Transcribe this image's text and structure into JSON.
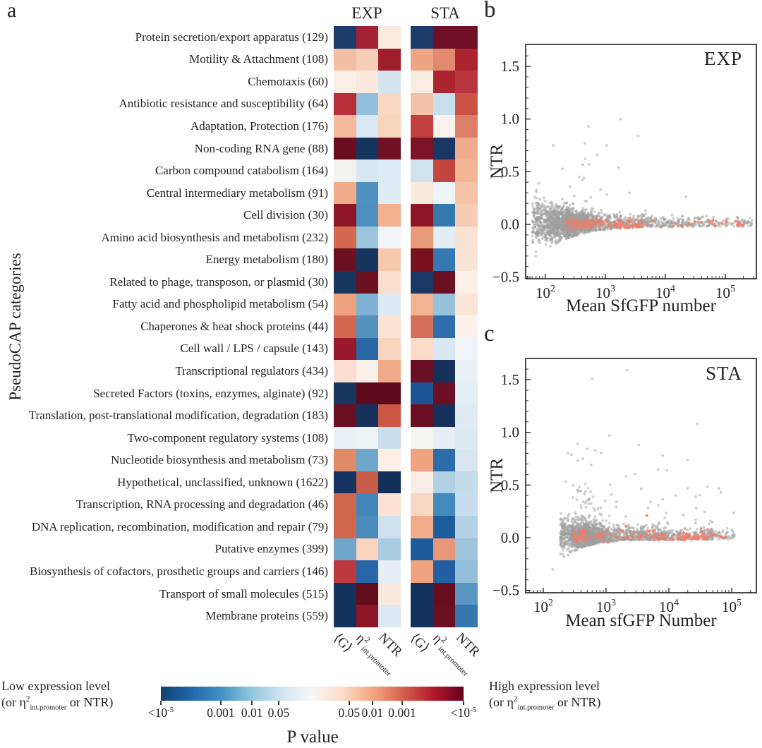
{
  "panel_letters": {
    "a": "a",
    "b": "b",
    "c": "c"
  },
  "colorbar": {
    "title": "P value",
    "low_label_line1": "Low expression level",
    "low_label_line2_parts": [
      {
        "t": "(or η"
      },
      {
        "sup": "2"
      },
      {
        "sub": "int.promoter"
      },
      {
        "t": " or NTR)"
      }
    ],
    "high_label_line1": "High expression level",
    "high_label_line2_parts": [
      {
        "t": "(or η"
      },
      {
        "sup": "2"
      },
      {
        "sub": "int.promoter"
      },
      {
        "t": " or NTR)"
      }
    ],
    "gradient": [
      "#10426f",
      "#2166ac",
      "#4393c3",
      "#92c5de",
      "#d1e5f0",
      "#f7f7f7",
      "#fddbc7",
      "#f4a582",
      "#d6604d",
      "#b2182b",
      "#67001f"
    ],
    "ticks": [
      {
        "parts": [
          {
            "t": "<10"
          },
          {
            "sup": "-5"
          }
        ],
        "frac": 0.0
      },
      {
        "parts": [
          {
            "t": "0.001"
          }
        ],
        "frac": 0.198
      },
      {
        "parts": [
          {
            "t": "0.01"
          }
        ],
        "frac": 0.301
      },
      {
        "parts": [
          {
            "t": "0.05"
          }
        ],
        "frac": 0.389
      },
      {
        "parts": [
          {
            "t": "0.05"
          }
        ],
        "frac": 0.622
      },
      {
        "parts": [
          {
            "t": "0.01"
          }
        ],
        "frac": 0.699
      },
      {
        "parts": [
          {
            "t": "0.001"
          }
        ],
        "frac": 0.797
      },
      {
        "parts": [
          {
            "t": "<10"
          },
          {
            "sup": "-5"
          }
        ],
        "frac": 1.0
      }
    ]
  },
  "chart_data": [
    {
      "type": "heatmap",
      "panel": "a",
      "title_groups": [
        "EXP",
        "STA"
      ],
      "ylabel": "PseudoCAP categories",
      "columns": [
        "⟨G⟩",
        "η2 int.promoter",
        "NTR"
      ],
      "col_tick_parts": [
        [
          {
            "t": "⟨G⟩"
          }
        ],
        [
          {
            "t": "η"
          },
          {
            "sup": "2"
          },
          {
            "sub": "int.promoter"
          }
        ],
        [
          {
            "t": "NTR"
          }
        ]
      ],
      "colorscale_note": "diverging blue-white-red; blue = significantly low, red = significantly high, saturation = P value down to <1e-5",
      "rows": [
        {
          "category": "Protein secretion/export apparatus (129)",
          "exp": [
            "#1e3c6b",
            "#a32133",
            "#fbeadd"
          ],
          "sta": [
            "#1e3c6b",
            "#701026",
            "#701026"
          ]
        },
        {
          "category": "Motility & Attachment (108)",
          "exp": [
            "#f2bfa3",
            "#f6cdb7",
            "#a01d2b"
          ],
          "sta": [
            "#eda584",
            "#e18a6e",
            "#aa2430"
          ]
        },
        {
          "category": "Chemotaxis (60)",
          "exp": [
            "#fbeee4",
            "#faeade",
            "#d3e4f0"
          ],
          "sta": [
            "#f9ece0",
            "#ac2430",
            "#b8343f"
          ]
        },
        {
          "category": "Antibiotic resistance and susceptibility (64)",
          "exp": [
            "#b73039",
            "#93c0dc",
            "#f8d8c2"
          ],
          "sta": [
            "#f3c1a9",
            "#cadfee",
            "#cc5244"
          ]
        },
        {
          "category": "Adaptation, Protection (176)",
          "exp": [
            "#f2b99c",
            "#d9e8f2",
            "#f7d4bd"
          ],
          "sta": [
            "#c1403e",
            "#fbf1ec",
            "#db8067"
          ]
        },
        {
          "category": "Non-coding RNA gene (88)",
          "exp": [
            "#6b0d20",
            "#16355e",
            "#701023"
          ],
          "sta": [
            "#7c1228",
            "#1a3763",
            "#f0ab8b"
          ]
        },
        {
          "category": "Carbon compound catabolism (164)",
          "exp": [
            "#f2f2f1",
            "#d8e8f2",
            "#dcebf4"
          ],
          "sta": [
            "#cfe2ef",
            "#c2453f",
            "#f3b594"
          ]
        },
        {
          "category": "Central intermediary metabolism (91)",
          "exp": [
            "#f0ab89",
            "#4e90c0",
            "#dfecf5"
          ],
          "sta": [
            "#fae9dd",
            "#eef3f6",
            "#f5c4a8"
          ]
        },
        {
          "category": "Cell division (30)",
          "exp": [
            "#8c1526",
            "#4e8fc0",
            "#f2b08d"
          ],
          "sta": [
            "#8c1526",
            "#3679ae",
            "#f6ccb2"
          ]
        },
        {
          "category": "Amino acid biosynthesis and metabolism (232)",
          "exp": [
            "#d5694f",
            "#9cc6de",
            "#f0f4f7"
          ],
          "sta": [
            "#e99b78",
            "#e3edf4",
            "#fae2d4"
          ]
        },
        {
          "category": "Energy metabolism (180)",
          "exp": [
            "#6b1122",
            "#16355e",
            "#f6c8ac"
          ],
          "sta": [
            "#77131f",
            "#3679b2",
            "#fae4d8"
          ]
        },
        {
          "category": "Related to phage, transposon, or plasmid (30)",
          "exp": [
            "#17375f",
            "#6b1122",
            "#fadfce"
          ],
          "sta": [
            "#1b3763",
            "#6b0f22",
            "#fcf0e8"
          ]
        },
        {
          "category": "Fatty acid and phospholipid metabolism (54)",
          "exp": [
            "#efa07c",
            "#7fb2d4",
            "#ddeaf3"
          ],
          "sta": [
            "#f2b392",
            "#96c2dc",
            "#fae5d8"
          ]
        },
        {
          "category": "Chaperones & heat shock proteins (44)",
          "exp": [
            "#d3664e",
            "#5591bd",
            "#fbe3d4"
          ],
          "sta": [
            "#d4705a",
            "#2f6eac",
            "#fbf1ea"
          ]
        },
        {
          "category": "Cell wall / LPS / capsule (143)",
          "exp": [
            "#99182a",
            "#2a67a5",
            "#f9d4bd"
          ],
          "sta": [
            "#fcdcc8",
            "#d8e7f1",
            "#eef4f8"
          ]
        },
        {
          "category": "Transcriptional regulators (434)",
          "exp": [
            "#fbdfd0",
            "#f8efe9",
            "#efab89"
          ],
          "sta": [
            "#6b0f22",
            "#16325c",
            "#e9f0f5"
          ]
        },
        {
          "category": "Secreted Factors (toxins, enzymes, alginate) (92)",
          "exp": [
            "#17375f",
            "#5e0a1c",
            "#5e0a1c"
          ],
          "sta": [
            "#1c5394",
            "#6b0f22",
            "#e4eef5"
          ]
        },
        {
          "category": "Translation, post-translational modification, degradation (183)",
          "exp": [
            "#6b0f22",
            "#16325c",
            "#cb5847"
          ],
          "sta": [
            "#6b0f22",
            "#16325c",
            "#dfeaf2"
          ]
        },
        {
          "category": "Two-component regulatory systems (108)",
          "exp": [
            "#e9eff3",
            "#edf2f5",
            "#c9dded"
          ],
          "sta": [
            "#f4f4f2",
            "#e7eff4",
            "#dbe9f2"
          ]
        },
        {
          "category": "Nucleotide biosynthesis and metabolism (73)",
          "exp": [
            "#e08a68",
            "#6fa6cc",
            "#faeee6"
          ],
          "sta": [
            "#efa37e",
            "#2c6cab",
            "#d7e6f0"
          ]
        },
        {
          "category": "Hypothetical, unclassified, unknown (1622)",
          "exp": [
            "#16335f",
            "#c75b45",
            "#142f58"
          ],
          "sta": [
            "#f7ede5",
            "#b1d0e4",
            "#c3dbeb"
          ]
        },
        {
          "category": "Transcription, RNA processing and degradation (46)",
          "exp": [
            "#d0664c",
            "#4387ba",
            "#fbe2d3"
          ],
          "sta": [
            "#f8d8c4",
            "#4489bc",
            "#c7dced"
          ]
        },
        {
          "category": "DNA replication, recombination, modification and repair (79)",
          "exp": [
            "#d0664c",
            "#4a8bbc",
            "#cfe1ee"
          ],
          "sta": [
            "#f1ad8a",
            "#1d5d9e",
            "#b5d2e5"
          ]
        },
        {
          "category": "Putative enzymes (399)",
          "exp": [
            "#70a6cb",
            "#f9d3bd",
            "#a9cbe0"
          ],
          "sta": [
            "#1c5a9c",
            "#e89878",
            "#9dc6dd"
          ]
        },
        {
          "category": "Biosynthesis of cofactors, prosthetic groups and carriers (146)",
          "exp": [
            "#bc3a3d",
            "#2767a8",
            "#e6eef4"
          ],
          "sta": [
            "#efa47f",
            "#2360a2",
            "#92bfda"
          ]
        },
        {
          "category": "Transport of small molecules (515)",
          "exp": [
            "#14325e",
            "#600d1e",
            "#f9e8dc"
          ],
          "sta": [
            "#14325e",
            "#670e20",
            "#5895c2"
          ]
        },
        {
          "category": "Membrane proteins (559)",
          "exp": [
            "#14325e",
            "#8c1526",
            "#dce9f2"
          ],
          "sta": [
            "#14325e",
            "#6b0f22",
            "#3379b0"
          ]
        }
      ]
    },
    {
      "type": "scatter",
      "panel": "b",
      "title": "EXP",
      "xlabel": "Mean SfGFP number",
      "ylabel": "NTR",
      "x_scale": "log",
      "x_tick_exponents": [
        2,
        3,
        4,
        5
      ],
      "y_ticks": [
        -0.5,
        0.0,
        0.5,
        1.0,
        1.5
      ],
      "xlim_log": [
        1.67,
        5.52
      ],
      "ylim": [
        -0.52,
        1.71
      ],
      "gray_color": "#9e9e9e",
      "red_color": "#ee7e69",
      "n_gray": 2200,
      "n_red": 140,
      "seed": 20,
      "trend": "dense cloud x=70-5000 centered near NTR=0 with funnel narrowing as x grows; thin tail of points along NTR~0.03 out to x~3e5; upward outliers to NTR~1.0",
      "special_outliers": [
        [
          3.25,
          1.0
        ],
        [
          2.72,
          0.93
        ],
        [
          3.55,
          0.84
        ],
        [
          2.66,
          0.77
        ],
        [
          3.02,
          0.75
        ],
        [
          2.86,
          0.66
        ],
        [
          2.73,
          0.57
        ],
        [
          3.22,
          0.54
        ],
        [
          2.56,
          0.45
        ],
        [
          2.62,
          0.42
        ],
        [
          2.92,
          0.33
        ],
        [
          3.4,
          0.3
        ],
        [
          2.48,
          0.27
        ]
      ],
      "red_special_outliers": []
    },
    {
      "type": "scatter",
      "panel": "c",
      "title": "STA",
      "xlabel": "Mean sfGFP Number",
      "ylabel": "NTR",
      "x_scale": "log",
      "x_tick_exponents": [
        2,
        3,
        4,
        5
      ],
      "y_ticks": [
        -0.5,
        0.0,
        0.5,
        1.0,
        1.5
      ],
      "xlim_log": [
        1.72,
        5.39
      ],
      "ylim": [
        -0.52,
        1.7
      ],
      "gray_color": "#9e9e9e",
      "red_color": "#ee7e69",
      "n_gray": 1900,
      "n_red": 140,
      "seed": 77,
      "trend": "cloud begins near x=200, centered NTR~0.02 with many positive outliers between 0.1 and 1.0; extremes at NTR~1.5-1.6; tail to x~1e5",
      "special_outliers": [
        [
          2.78,
          1.51
        ],
        [
          3.33,
          1.59
        ],
        [
          4.45,
          1.08
        ],
        [
          3.05,
          0.97
        ],
        [
          2.63,
          0.75
        ],
        [
          3.52,
          0.88
        ],
        [
          4.3,
          0.74
        ],
        [
          2.15,
          -0.3
        ],
        [
          3.9,
          0.78
        ],
        [
          2.55,
          0.73
        ]
      ],
      "red_special_outliers": [
        [
          3.65,
          0.21
        ]
      ]
    }
  ]
}
